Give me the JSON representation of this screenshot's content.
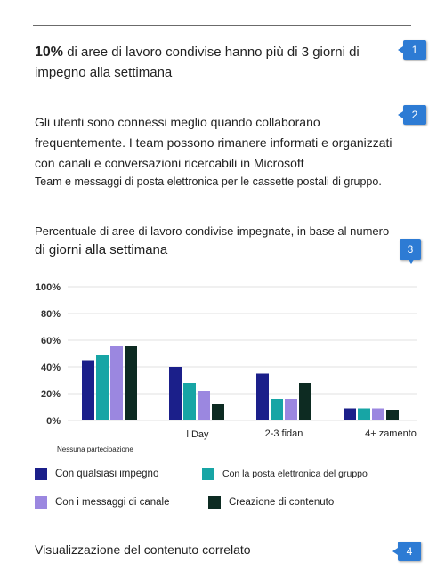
{
  "intro": {
    "highlight": "10%",
    "text_line1": " di aree di lavoro condivise hanno più di 3 giorni di",
    "text_line2": "impegno alla settimana"
  },
  "paragraph": {
    "line1": "Gli utenti sono connessi meglio quando collaborano",
    "line2": "frequentemente. I team possono rimanere informati e organizzati",
    "line3": "con canali e conversazioni ricercabili in Microsoft",
    "line4": "Team e messaggi di posta elettronica per le cassette postali di gruppo."
  },
  "chart_heading": {
    "line1": "Percentuale di aree di lavoro condivise impegnate, in base al numero",
    "line2": "di giorni alla settimana"
  },
  "callouts": [
    "1",
    "2",
    "3",
    "4"
  ],
  "chart_data": {
    "type": "bar",
    "categories": [
      "Nessuna partecipazione",
      "l Day",
      "2-3 fidan",
      "4+ zamento"
    ],
    "yticks": [
      "100%",
      "80%",
      "60%",
      "40%",
      "20%",
      "0%"
    ],
    "ylim": [
      0,
      100
    ],
    "grid": true,
    "legend_position": "bottom",
    "series": [
      {
        "name": "Con qualsiasi impegno",
        "color": "#1b1f8a",
        "values": [
          45,
          40,
          35,
          9
        ]
      },
      {
        "name": "Con la posta elettronica del gruppo",
        "color": "#17a5a5",
        "values": [
          49,
          28,
          16,
          9
        ]
      },
      {
        "name": "Con i messaggi di canale",
        "color": "#9b87e0",
        "values": [
          56,
          22,
          16,
          9
        ]
      },
      {
        "name": "Creazione di contenuto",
        "color": "#0d2b22",
        "values": [
          56,
          12,
          28,
          8
        ]
      }
    ]
  },
  "related_label": "Visualizzazione del contenuto correlato"
}
